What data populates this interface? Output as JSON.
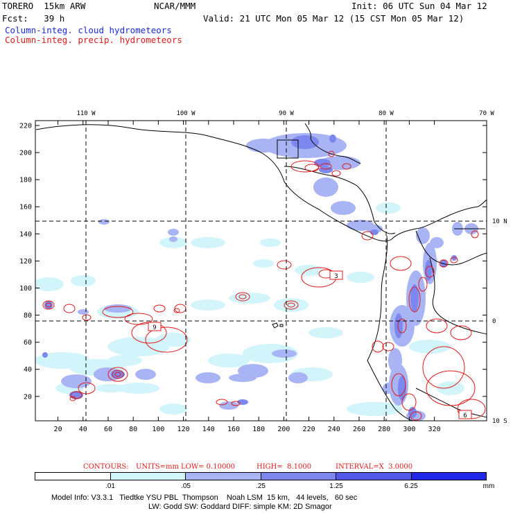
{
  "header": {
    "model": "TORERO  15km ARW",
    "org": "NCAR/MMM",
    "init": "Init: 06 UTC Sun 04 Mar 12",
    "fcst": "Fcst:   39 h",
    "valid": "Valid: 21 UTC Mon 05 Mar 12 (15 CST Mon 05 Mar 12)",
    "field_cloud": "Column-integ. cloud hydrometeors",
    "field_precip": "Column-integ. precip. hydrometeors"
  },
  "colors": {
    "cloud": "#1a2ad8",
    "precip": "#e01818",
    "shade1": "#d2f4fb",
    "shade2": "#a8b4f4",
    "shade3": "#7c88ee",
    "shade4": "#5058ea",
    "shade5": "#2228ea"
  },
  "map": {
    "lon_labels": [
      "110 W",
      "100 W",
      "90 W",
      "80 W",
      "70 W"
    ],
    "lat_labels": [
      "10 N",
      "0",
      "10 S"
    ],
    "y_ticks": [
      "220",
      "200",
      "180",
      "160",
      "140",
      "120",
      "100",
      "80",
      "60",
      "40",
      "20"
    ],
    "x_ticks": [
      "20",
      "40",
      "60",
      "80",
      "100",
      "120",
      "140",
      "160",
      "180",
      "200",
      "220",
      "240",
      "260",
      "280",
      "300",
      "320"
    ],
    "contour_labels": [
      "9",
      "3",
      "6"
    ]
  },
  "contours_info": {
    "label": "CONTOURS:",
    "units": "UNITS=mm",
    "low": "LOW= 0.10000",
    "high": "HIGH=  8.1000",
    "interval": "INTERVAL=X  3.0000"
  },
  "legend": {
    "values": [
      ".01",
      ".05",
      ".25",
      "1.25",
      "6.25"
    ],
    "unit": "mm"
  },
  "footer": {
    "line1": "Model Info: V3.3.1   Tiedtke YSU PBL  Thompson    Noah LSM  15 km,   44 levels,   60 sec",
    "line2": "LW: Godd SW: Goddard DIFF: simple KM: 2D Smagor"
  }
}
